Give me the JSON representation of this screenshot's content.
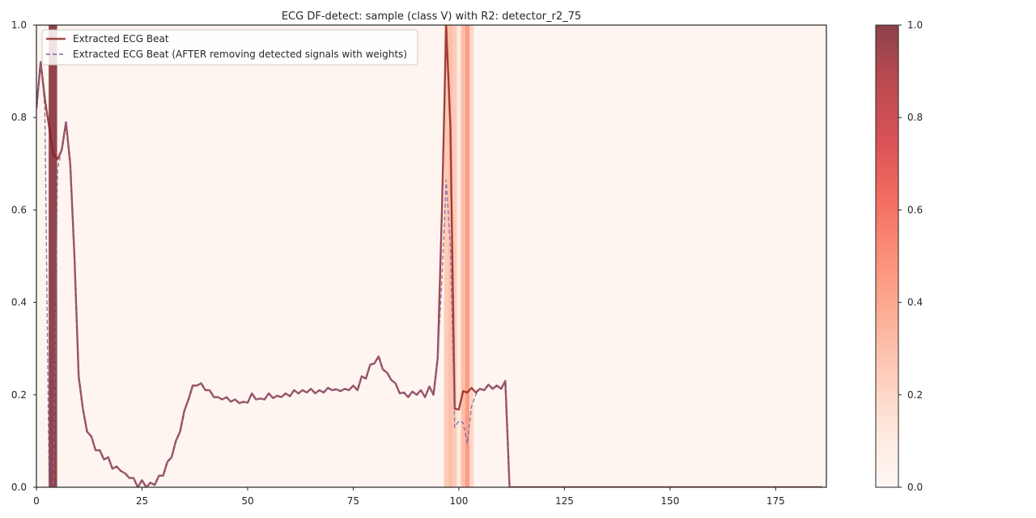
{
  "chart_data": {
    "type": "line",
    "title": "ECG DF-detect: sample (class V) with R2: detector_r2_75",
    "xlabel": "",
    "ylabel": "",
    "xlim": [
      0,
      187
    ],
    "ylim": [
      0,
      1
    ],
    "x_ticks": [
      0,
      25,
      50,
      75,
      100,
      125,
      150,
      175
    ],
    "y_ticks": [
      0.0,
      0.2,
      0.4,
      0.6,
      0.8,
      1.0
    ],
    "grid": false,
    "legend_position": "top-left",
    "series": [
      {
        "name": "Extracted ECG Beat",
        "style": "solid",
        "color": "#8b1a1a",
        "x": [
          0,
          1,
          2,
          3,
          4,
          5,
          6,
          7,
          8,
          9,
          10,
          11,
          12,
          13,
          14,
          15,
          16,
          17,
          18,
          19,
          20,
          21,
          22,
          23,
          24,
          25,
          26,
          27,
          28,
          29,
          30,
          31,
          32,
          33,
          34,
          35,
          36,
          37,
          38,
          39,
          40,
          41,
          42,
          43,
          44,
          45,
          46,
          47,
          48,
          49,
          50,
          51,
          52,
          53,
          54,
          55,
          56,
          57,
          58,
          59,
          60,
          61,
          62,
          63,
          64,
          65,
          66,
          67,
          68,
          69,
          70,
          71,
          72,
          73,
          74,
          75,
          76,
          77,
          78,
          79,
          80,
          81,
          82,
          83,
          84,
          85,
          86,
          87,
          88,
          89,
          90,
          91,
          92,
          93,
          94,
          95,
          96,
          97,
          98,
          99,
          100,
          101,
          102,
          103,
          104,
          105,
          106,
          107,
          108,
          109,
          110,
          111,
          112,
          186
        ],
        "values": [
          0.82,
          0.92,
          0.84,
          0.78,
          0.72,
          0.71,
          0.73,
          0.79,
          0.7,
          0.5,
          0.24,
          0.17,
          0.12,
          0.11,
          0.08,
          0.08,
          0.06,
          0.065,
          0.04,
          0.045,
          0.035,
          0.03,
          0.02,
          0.02,
          0.0,
          0.015,
          0.0,
          0.01,
          0.005,
          0.025,
          0.025,
          0.055,
          0.065,
          0.1,
          0.12,
          0.165,
          0.19,
          0.22,
          0.22,
          0.225,
          0.21,
          0.21,
          0.195,
          0.195,
          0.19,
          0.195,
          0.185,
          0.19,
          0.182,
          0.185,
          0.183,
          0.203,
          0.19,
          0.192,
          0.19,
          0.203,
          0.193,
          0.198,
          0.195,
          0.203,
          0.197,
          0.21,
          0.203,
          0.21,
          0.205,
          0.213,
          0.203,
          0.21,
          0.205,
          0.215,
          0.21,
          0.212,
          0.208,
          0.213,
          0.21,
          0.22,
          0.21,
          0.24,
          0.235,
          0.265,
          0.268,
          0.283,
          0.255,
          0.248,
          0.232,
          0.225,
          0.203,
          0.205,
          0.195,
          0.207,
          0.2,
          0.21,
          0.195,
          0.218,
          0.2,
          0.28,
          0.6,
          1.0,
          0.78,
          0.17,
          0.168,
          0.208,
          0.205,
          0.215,
          0.205,
          0.213,
          0.21,
          0.222,
          0.213,
          0.22,
          0.213,
          0.23,
          0.0,
          0.0
        ]
      },
      {
        "name": "Extracted ECG Beat (AFTER removing detected signals with weights)",
        "style": "dashed",
        "color": "#7c6aa8",
        "x": [
          0,
          1,
          2,
          3,
          4,
          5,
          6,
          7,
          8,
          9,
          10,
          11,
          12,
          13,
          14,
          15,
          16,
          17,
          18,
          19,
          20,
          21,
          22,
          23,
          24,
          25,
          26,
          27,
          28,
          29,
          30,
          31,
          32,
          33,
          34,
          35,
          36,
          37,
          38,
          39,
          40,
          41,
          42,
          43,
          44,
          45,
          46,
          47,
          48,
          49,
          50,
          51,
          52,
          53,
          54,
          55,
          56,
          57,
          58,
          59,
          60,
          61,
          62,
          63,
          64,
          65,
          66,
          67,
          68,
          69,
          70,
          71,
          72,
          73,
          74,
          75,
          76,
          77,
          78,
          79,
          80,
          81,
          82,
          83,
          84,
          85,
          86,
          87,
          88,
          89,
          90,
          91,
          92,
          93,
          94,
          95,
          96,
          97,
          98,
          99,
          100,
          101,
          102,
          103,
          104,
          105,
          106,
          107,
          108,
          109,
          110,
          111,
          112,
          186
        ],
        "values": [
          0.82,
          0.92,
          0.82,
          0.0,
          0.0,
          0.69,
          0.73,
          0.79,
          0.7,
          0.5,
          0.24,
          0.17,
          0.12,
          0.11,
          0.08,
          0.08,
          0.06,
          0.065,
          0.04,
          0.045,
          0.035,
          0.03,
          0.02,
          0.02,
          0.0,
          0.015,
          0.0,
          0.01,
          0.005,
          0.025,
          0.025,
          0.055,
          0.065,
          0.1,
          0.12,
          0.165,
          0.19,
          0.22,
          0.22,
          0.225,
          0.21,
          0.21,
          0.195,
          0.195,
          0.19,
          0.195,
          0.185,
          0.19,
          0.182,
          0.185,
          0.183,
          0.203,
          0.19,
          0.192,
          0.19,
          0.203,
          0.193,
          0.198,
          0.195,
          0.203,
          0.197,
          0.21,
          0.203,
          0.21,
          0.205,
          0.213,
          0.203,
          0.21,
          0.205,
          0.215,
          0.21,
          0.212,
          0.208,
          0.213,
          0.21,
          0.22,
          0.21,
          0.24,
          0.235,
          0.265,
          0.268,
          0.283,
          0.255,
          0.248,
          0.232,
          0.225,
          0.203,
          0.205,
          0.195,
          0.207,
          0.2,
          0.21,
          0.195,
          0.218,
          0.2,
          0.28,
          0.45,
          0.665,
          0.52,
          0.13,
          0.143,
          0.14,
          0.095,
          0.175,
          0.2,
          0.213,
          0.21,
          0.222,
          0.213,
          0.22,
          0.213,
          0.23,
          0.0,
          0.0
        ]
      }
    ],
    "heatmap_bands": {
      "baseline_weight": 0.02,
      "bands": [
        {
          "x0": 2.9,
          "x1": 4.9,
          "weight": 1.0
        },
        {
          "x0": 96.5,
          "x1": 97.5,
          "weight": 0.25
        },
        {
          "x0": 97.5,
          "x1": 98.5,
          "weight": 0.3
        },
        {
          "x0": 98.5,
          "x1": 99.5,
          "weight": 0.25
        },
        {
          "x0": 99.5,
          "x1": 100.5,
          "weight": 0.1
        },
        {
          "x0": 100.5,
          "x1": 101.5,
          "weight": 0.3
        },
        {
          "x0": 101.5,
          "x1": 102.5,
          "weight": 0.45
        },
        {
          "x0": 102.5,
          "x1": 103.5,
          "weight": 0.2
        }
      ]
    },
    "colorbar": {
      "cmap": "Reds",
      "range": [
        0,
        1
      ],
      "ticks": [
        0.0,
        0.2,
        0.4,
        0.6,
        0.8,
        1.0
      ]
    }
  }
}
